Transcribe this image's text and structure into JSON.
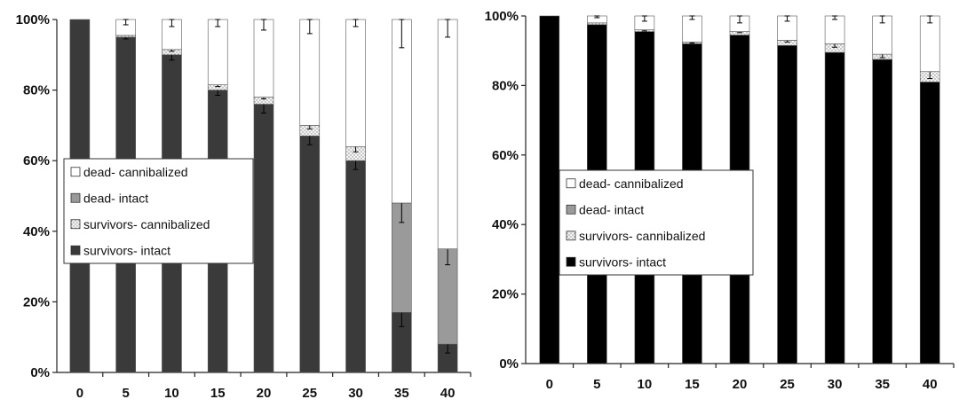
{
  "colors": {
    "survivors_intact_left": "#3a3a3a",
    "survivors_intact_right": "#000000",
    "survivors_cannibalized": "#e9e9e9",
    "dead_intact": "#9a9a9a",
    "dead_cannibalized": "#ffffff",
    "axis": "#222222"
  },
  "chart_data": [
    {
      "type": "bar",
      "stacked": true,
      "percent_scale": true,
      "categories": [
        "0",
        "5",
        "10",
        "15",
        "20",
        "25",
        "30",
        "35",
        "40"
      ],
      "y_ticks": [
        "0%",
        "20%",
        "40%",
        "60%",
        "80%",
        "100%"
      ],
      "ylim": [
        0,
        100
      ],
      "legend_position": "left-middle",
      "series": [
        {
          "name": "survivors- intact",
          "values": [
            100,
            95,
            90,
            80,
            76,
            67,
            60,
            17,
            8
          ],
          "error": [
            0,
            0.5,
            1.5,
            1.5,
            2.5,
            2.5,
            2.5,
            4,
            2.5
          ]
        },
        {
          "name": "survivors- cannibalized",
          "values": [
            0,
            0.5,
            1.5,
            1.5,
            2,
            3,
            4,
            0,
            0
          ],
          "error": [
            0,
            0,
            0.5,
            0.5,
            0.5,
            1,
            1.5,
            0,
            0
          ]
        },
        {
          "name": "dead- intact",
          "values": [
            0,
            0,
            0,
            0,
            0,
            0,
            0,
            31,
            27
          ],
          "error": [
            0,
            0,
            0,
            0,
            0,
            0,
            0,
            5.5,
            4.5
          ]
        },
        {
          "name": "dead- cannibalized",
          "values": [
            0,
            4.5,
            8.5,
            18.5,
            22,
            30,
            36,
            52,
            65
          ],
          "error": [
            0,
            1.5,
            2,
            2,
            3,
            4,
            2,
            8,
            5
          ]
        }
      ],
      "legend": [
        "dead- cannibalized",
        "dead- intact",
        "survivors- cannibalized",
        "survivors- intact"
      ]
    },
    {
      "type": "bar",
      "stacked": true,
      "percent_scale": true,
      "categories": [
        "0",
        "5",
        "10",
        "15",
        "20",
        "25",
        "30",
        "35",
        "40"
      ],
      "y_ticks": [
        "0%",
        "20%",
        "40%",
        "60%",
        "80%",
        "100%"
      ],
      "ylim": [
        0,
        100
      ],
      "legend_position": "left-middle",
      "series": [
        {
          "name": "survivors- intact",
          "values": [
            100,
            97.5,
            95.5,
            92,
            94.5,
            91.5,
            89.5,
            87.5,
            81
          ],
          "error": [
            0,
            0.5,
            0.5,
            0.5,
            0.5,
            0.5,
            1,
            1,
            1
          ]
        },
        {
          "name": "survivors- cannibalized",
          "values": [
            0,
            0.5,
            0.5,
            0.5,
            1,
            1.5,
            2.5,
            1.5,
            3
          ],
          "error": [
            0,
            0,
            0.3,
            0.3,
            0.3,
            0.5,
            1,
            1,
            2
          ]
        },
        {
          "name": "dead- intact",
          "values": [
            0,
            0,
            0,
            0,
            0,
            0,
            0,
            0,
            0
          ],
          "error": [
            0,
            0,
            0,
            0,
            0,
            0,
            0,
            0,
            0
          ]
        },
        {
          "name": "dead- cannibalized",
          "values": [
            0,
            2,
            4,
            7.5,
            4.5,
            7,
            8,
            11,
            16
          ],
          "error": [
            0,
            0.5,
            1.5,
            1,
            2,
            1.5,
            1,
            2,
            2
          ]
        }
      ],
      "legend": [
        "dead- cannibalized",
        "dead- intact",
        "survivors- cannibalized",
        "survivors- intact"
      ]
    }
  ]
}
